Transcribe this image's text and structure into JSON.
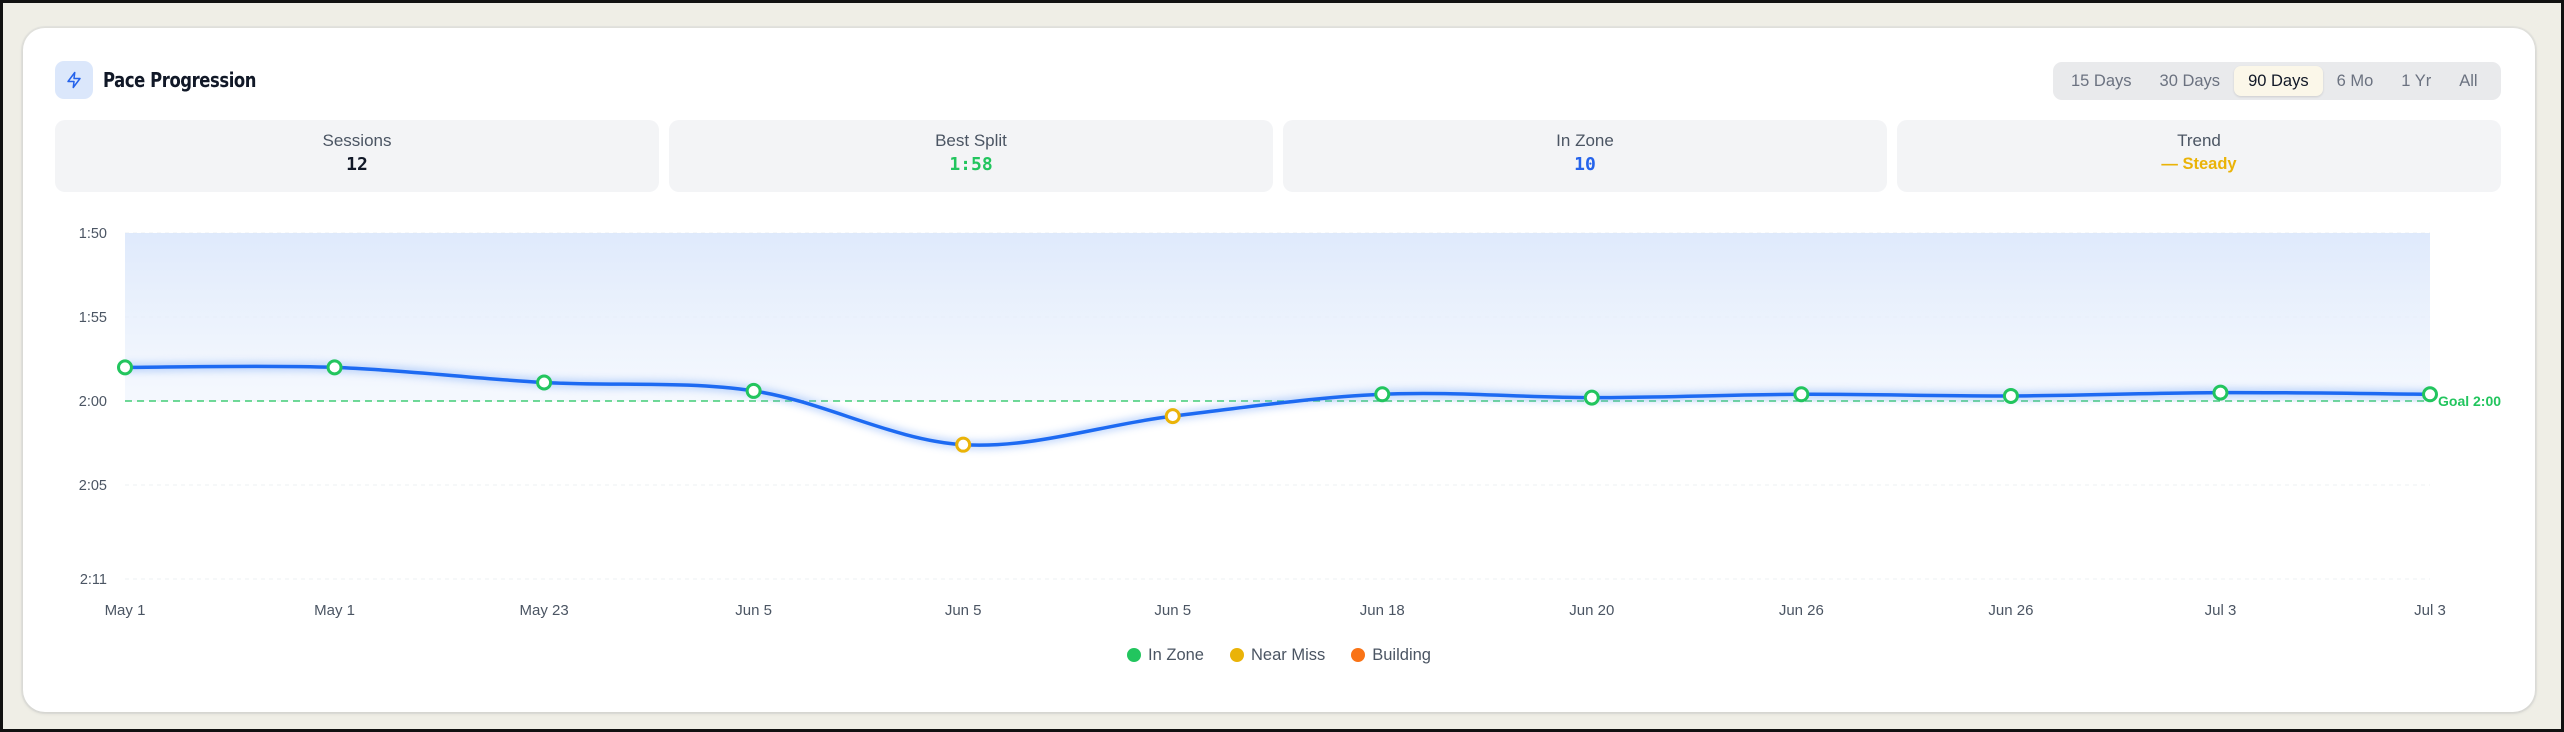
{
  "header": {
    "title": "Pace Progression",
    "icon": "lightning-icon"
  },
  "ranges": {
    "options": [
      "15 Days",
      "30 Days",
      "90 Days",
      "6 Mo",
      "1 Yr",
      "All"
    ],
    "selected": "90 Days"
  },
  "stats": {
    "sessions": {
      "label": "Sessions",
      "value": "12"
    },
    "best_split": {
      "label": "Best Split",
      "value": "1:58",
      "color": "#22c55e"
    },
    "in_zone": {
      "label": "In Zone",
      "value": "10",
      "color": "#2563eb"
    },
    "trend": {
      "label": "Trend",
      "value": "— Steady",
      "color": "#eab308"
    }
  },
  "legend": {
    "in_zone": "In Zone",
    "near_miss": "Near Miss",
    "building": "Building"
  },
  "colors": {
    "line": "#1d6af2",
    "in_zone": "#22c55e",
    "near_miss": "#eab308",
    "building": "#f97316"
  },
  "chart_data": {
    "type": "line",
    "ylabel": "",
    "xlabel": "",
    "y_unit": "seconds per split",
    "y_ticks": [
      {
        "label": "1:50",
        "value": 110
      },
      {
        "label": "1:55",
        "value": 115
      },
      {
        "label": "2:00",
        "value": 120
      },
      {
        "label": "2:05",
        "value": 125
      },
      {
        "label": "2:11",
        "value": 131
      }
    ],
    "ylim": [
      110,
      131
    ],
    "inverted_y": true,
    "goal": {
      "label": "Goal 2:00",
      "value": 120
    },
    "points": [
      {
        "x": "May 1",
        "y": 118,
        "status": "in_zone"
      },
      {
        "x": "May 1",
        "y": 118,
        "status": "in_zone"
      },
      {
        "x": "May 23",
        "y": 118.9,
        "status": "in_zone"
      },
      {
        "x": "Jun 5",
        "y": 119.4,
        "status": "in_zone"
      },
      {
        "x": "Jun 5",
        "y": 122.6,
        "status": "near_miss"
      },
      {
        "x": "Jun 5",
        "y": 120.9,
        "status": "near_miss"
      },
      {
        "x": "Jun 18",
        "y": 119.6,
        "status": "in_zone"
      },
      {
        "x": "Jun 20",
        "y": 119.8,
        "status": "in_zone"
      },
      {
        "x": "Jun 26",
        "y": 119.6,
        "status": "in_zone"
      },
      {
        "x": "Jun 26",
        "y": 119.7,
        "status": "in_zone"
      },
      {
        "x": "Jul 3",
        "y": 119.5,
        "status": "in_zone"
      },
      {
        "x": "Jul 3",
        "y": 119.6,
        "status": "in_zone"
      }
    ]
  }
}
